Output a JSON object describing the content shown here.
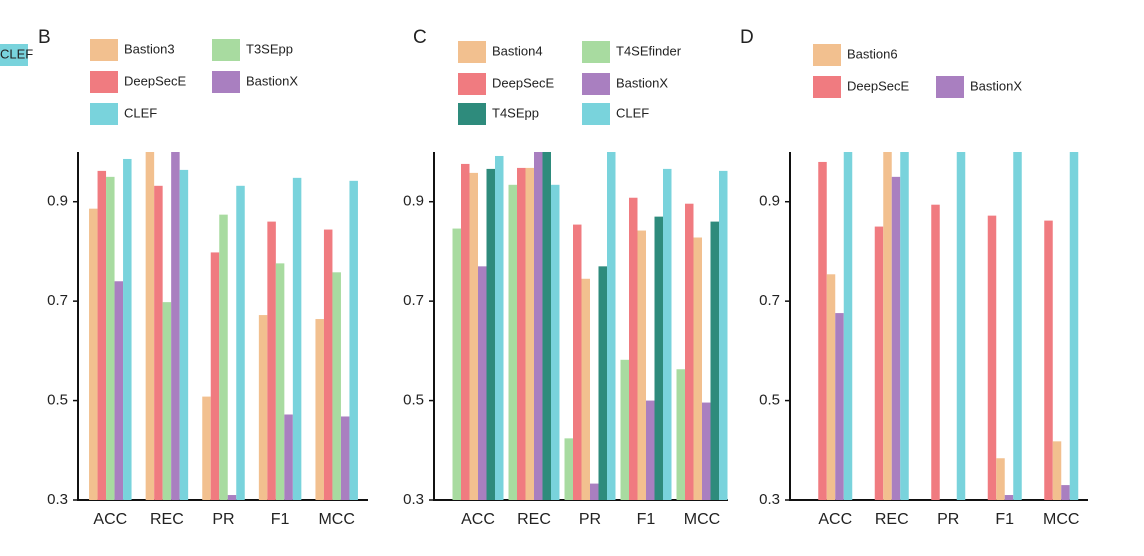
{
  "chart_data": [
    {
      "type": "bar",
      "label": "B",
      "categories": [
        "ACC",
        "REC",
        "PR",
        "F1",
        "MCC"
      ],
      "series": [
        {
          "name": "Bastion3",
          "color": "#f2c08f",
          "values": [
            0.886,
            1.0,
            0.508,
            0.672,
            0.664
          ]
        },
        {
          "name": "DeepSecE",
          "color": "#f07b80",
          "values": [
            0.962,
            0.932,
            0.798,
            0.86,
            0.844
          ]
        },
        {
          "name": "T3SEpp",
          "color": "#a8dba0",
          "values": [
            0.95,
            0.698,
            0.874,
            0.776,
            0.758
          ]
        },
        {
          "name": "BastionX",
          "color": "#a97fc0",
          "values": [
            0.74,
            1.0,
            0.31,
            0.472,
            0.468
          ]
        },
        {
          "name": "CLEF",
          "color": "#79d3dc",
          "values": [
            0.986,
            0.964,
            0.932,
            0.948,
            0.942
          ]
        }
      ],
      "ylim": [
        0.3,
        1.0
      ],
      "yticks": [
        0.3,
        0.5,
        0.7,
        0.9
      ]
    },
    {
      "type": "bar",
      "label": "C",
      "categories": [
        "ACC",
        "REC",
        "PR",
        "F1",
        "MCC"
      ],
      "series": [
        {
          "name": "T4SEfinder",
          "color": "#a8dba0",
          "values": [
            0.846,
            0.934,
            0.424,
            0.582,
            0.563
          ]
        },
        {
          "name": "DeepSecE",
          "color": "#f07b80",
          "values": [
            0.976,
            0.968,
            0.854,
            0.908,
            0.896
          ]
        },
        {
          "name": "Bastion4",
          "color": "#f2c08f",
          "values": [
            0.958,
            0.968,
            0.745,
            0.842,
            0.828
          ]
        },
        {
          "name": "BastionX",
          "color": "#a97fc0",
          "values": [
            0.77,
            1.0,
            0.333,
            0.5,
            0.496
          ]
        },
        {
          "name": "T4SEpp",
          "color": "#2e8b7c",
          "values": [
            0.966,
            1.0,
            0.77,
            0.87,
            0.86
          ]
        },
        {
          "name": "CLEF",
          "color": "#79d3dc",
          "values": [
            0.992,
            0.934,
            1.0,
            0.966,
            0.962
          ]
        }
      ],
      "ylim": [
        0.3,
        1.0
      ],
      "yticks": [
        0.3,
        0.5,
        0.7,
        0.9
      ]
    },
    {
      "type": "bar",
      "label": "D",
      "categories": [
        "ACC",
        "REC",
        "PR",
        "F1",
        "MCC"
      ],
      "series": [
        {
          "name": "DeepSecE",
          "color": "#f07b80",
          "values": [
            0.98,
            0.85,
            0.894,
            0.872,
            0.862
          ]
        },
        {
          "name": "Bastion6",
          "color": "#f2c08f",
          "values": [
            0.754,
            1.0,
            null,
            0.384,
            0.418
          ]
        },
        {
          "name": "BastionX",
          "color": "#a97fc0",
          "values": [
            0.676,
            0.95,
            null,
            0.31,
            0.33
          ]
        },
        {
          "name": "CLEF",
          "color": "#79d3dc",
          "values": [
            1.0,
            1.0,
            1.0,
            1.0,
            1.0
          ]
        }
      ],
      "ylim": [
        0.3,
        1.0
      ],
      "yticks": [
        0.3,
        0.5,
        0.7,
        0.9
      ]
    }
  ]
}
